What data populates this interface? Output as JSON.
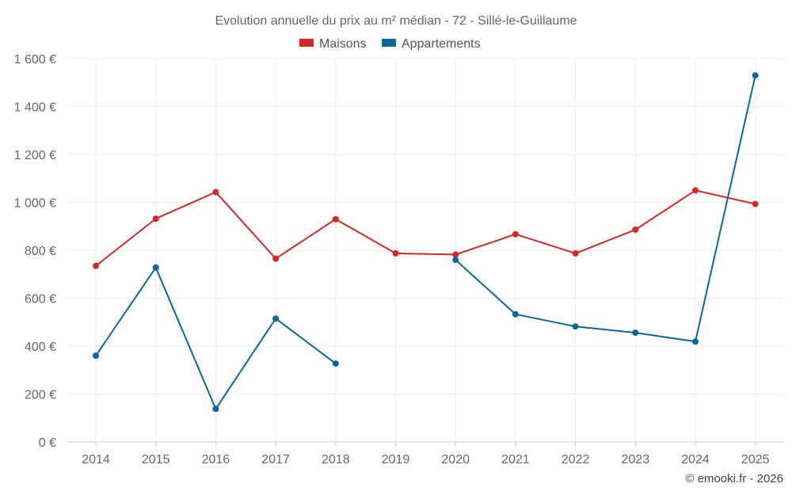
{
  "chart_data": {
    "type": "line",
    "title": "Evolution annuelle du prix au m² médian - 72 - Sillé-le-Guillaume",
    "categories": [
      "2014",
      "2015",
      "2016",
      "2017",
      "2018",
      "2019",
      "2020",
      "2021",
      "2022",
      "2023",
      "2024",
      "2025"
    ],
    "series": [
      {
        "name": "Maisons",
        "color": "#d62728",
        "values": [
          735,
          932,
          1043,
          765,
          930,
          787,
          782,
          867,
          787,
          886,
          1050,
          993
        ]
      },
      {
        "name": "Appartements",
        "color": "#0a6799",
        "values": [
          360,
          728,
          138,
          515,
          327,
          null,
          760,
          533,
          482,
          456,
          419,
          1530
        ]
      }
    ],
    "y_ticks": [
      0,
      200,
      400,
      600,
      800,
      1000,
      1200,
      1400,
      1600
    ],
    "y_tick_labels": [
      "0 €",
      "200 €",
      "400 €",
      "600 €",
      "800 €",
      "1 000 €",
      "1 200 €",
      "1 400 €",
      "1 600 €"
    ],
    "ylim": [
      0,
      1600
    ],
    "xlabel": "",
    "ylabel": "",
    "grid": true,
    "legend_position": "top-center"
  },
  "credit": "© emooki.fr - 2026"
}
